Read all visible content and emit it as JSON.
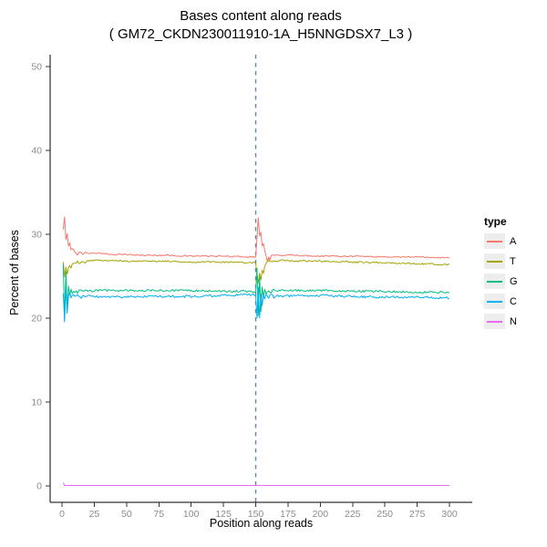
{
  "legend": {
    "title": "type",
    "entries": [
      {
        "label": "A",
        "color": "#F8766D"
      },
      {
        "label": "T",
        "color": "#A3A500"
      },
      {
        "label": "G",
        "color": "#00BF7D"
      },
      {
        "label": "C",
        "color": "#00B0F6"
      },
      {
        "label": "N",
        "color": "#E76BF3"
      }
    ]
  },
  "chart_data": {
    "type": "line",
    "title": "Bases content along reads",
    "subtitle": "( GM72_CKDN230011910-1A_H5NNGDSX7_L3 )",
    "xlabel": "Position along reads",
    "ylabel": "Percent of bases",
    "x_range": [
      1,
      300
    ],
    "xlim": [
      0,
      300
    ],
    "ylim": [
      0,
      52
    ],
    "x_ticks": [
      0,
      25,
      50,
      75,
      100,
      125,
      150,
      175,
      200,
      225,
      250,
      275,
      300
    ],
    "y_ticks": [
      0,
      10,
      20,
      30,
      40,
      50
    ],
    "grid": "off",
    "legend_position": "right",
    "vline": {
      "x": 150,
      "style": "dashed",
      "color": "#5588BB"
    },
    "styles": {
      "axis_line_color": "#000000",
      "tick_label_color": "#8C8C8C",
      "legend_key_bg": "#EDEDED"
    },
    "series": [
      {
        "name": "A",
        "color": "#F8766D",
        "noise": 0.08,
        "points": [
          [
            1,
            30.5
          ],
          [
            2,
            32.0
          ],
          [
            3,
            29.3
          ],
          [
            4,
            30.0
          ],
          [
            5,
            28.7
          ],
          [
            6,
            29.0
          ],
          [
            7,
            28.2
          ],
          [
            8,
            28.4
          ],
          [
            10,
            27.8
          ],
          [
            12,
            27.6
          ],
          [
            14,
            27.9
          ],
          [
            16,
            27.7
          ],
          [
            18,
            27.9
          ],
          [
            20,
            27.7
          ],
          [
            25,
            27.8
          ],
          [
            30,
            27.7
          ],
          [
            40,
            27.6
          ],
          [
            50,
            27.6
          ],
          [
            60,
            27.5
          ],
          [
            80,
            27.5
          ],
          [
            100,
            27.4
          ],
          [
            120,
            27.4
          ],
          [
            149,
            27.3
          ],
          [
            150,
            27.3
          ],
          [
            151,
            29.5
          ],
          [
            152,
            32.0
          ],
          [
            153,
            29.8
          ],
          [
            154,
            30.3
          ],
          [
            155,
            28.6
          ],
          [
            156,
            28.9
          ],
          [
            157,
            28.0
          ],
          [
            158,
            27.4
          ],
          [
            159,
            26.8
          ],
          [
            160,
            27.3
          ],
          [
            161,
            26.9
          ],
          [
            162,
            27.4
          ],
          [
            164,
            27.5
          ],
          [
            166,
            27.6
          ],
          [
            170,
            27.5
          ],
          [
            180,
            27.5
          ],
          [
            200,
            27.4
          ],
          [
            225,
            27.4
          ],
          [
            250,
            27.3
          ],
          [
            275,
            27.3
          ],
          [
            300,
            27.2
          ]
        ]
      },
      {
        "name": "T",
        "color": "#A3A500",
        "noise": 0.09,
        "points": [
          [
            1,
            26.6
          ],
          [
            2,
            24.9
          ],
          [
            3,
            26.2
          ],
          [
            4,
            25.3
          ],
          [
            5,
            25.9
          ],
          [
            6,
            26.3
          ],
          [
            7,
            26.0
          ],
          [
            8,
            26.4
          ],
          [
            10,
            26.5
          ],
          [
            12,
            26.7
          ],
          [
            14,
            26.5
          ],
          [
            16,
            26.8
          ],
          [
            18,
            26.7
          ],
          [
            20,
            26.8
          ],
          [
            25,
            26.9
          ],
          [
            30,
            26.9
          ],
          [
            40,
            26.9
          ],
          [
            50,
            26.8
          ],
          [
            60,
            26.8
          ],
          [
            80,
            26.8
          ],
          [
            100,
            26.7
          ],
          [
            120,
            26.7
          ],
          [
            149,
            26.6
          ],
          [
            150,
            26.6
          ],
          [
            151,
            25.4
          ],
          [
            152,
            24.2
          ],
          [
            153,
            25.3
          ],
          [
            154,
            24.6
          ],
          [
            155,
            25.8
          ],
          [
            156,
            25.3
          ],
          [
            157,
            26.2
          ],
          [
            158,
            26.6
          ],
          [
            160,
            26.9
          ],
          [
            162,
            26.7
          ],
          [
            164,
            26.9
          ],
          [
            166,
            26.8
          ],
          [
            170,
            26.9
          ],
          [
            180,
            26.8
          ],
          [
            200,
            26.8
          ],
          [
            225,
            26.7
          ],
          [
            250,
            26.6
          ],
          [
            275,
            26.5
          ],
          [
            300,
            26.4
          ]
        ]
      },
      {
        "name": "G",
        "color": "#00BF7D",
        "noise": 0.12,
        "points": [
          [
            1,
            26.4
          ],
          [
            2,
            19.8
          ],
          [
            3,
            25.6
          ],
          [
            4,
            20.9
          ],
          [
            5,
            23.9
          ],
          [
            6,
            22.7
          ],
          [
            7,
            23.4
          ],
          [
            8,
            22.9
          ],
          [
            10,
            23.2
          ],
          [
            12,
            23.0
          ],
          [
            14,
            23.3
          ],
          [
            16,
            23.1
          ],
          [
            18,
            23.3
          ],
          [
            20,
            23.2
          ],
          [
            25,
            23.3
          ],
          [
            30,
            23.3
          ],
          [
            40,
            23.3
          ],
          [
            50,
            23.3
          ],
          [
            60,
            23.3
          ],
          [
            80,
            23.3
          ],
          [
            100,
            23.3
          ],
          [
            120,
            23.2
          ],
          [
            149,
            23.2
          ],
          [
            150,
            23.2
          ],
          [
            151,
            26.0
          ],
          [
            152,
            20.2
          ],
          [
            153,
            24.8
          ],
          [
            154,
            20.8
          ],
          [
            155,
            23.6
          ],
          [
            156,
            22.4
          ],
          [
            157,
            23.4
          ],
          [
            158,
            22.8
          ],
          [
            160,
            23.3
          ],
          [
            162,
            23.1
          ],
          [
            164,
            23.4
          ],
          [
            166,
            23.2
          ],
          [
            170,
            23.3
          ],
          [
            180,
            23.3
          ],
          [
            200,
            23.3
          ],
          [
            225,
            23.2
          ],
          [
            250,
            23.2
          ],
          [
            275,
            23.1
          ],
          [
            300,
            23.1
          ]
        ]
      },
      {
        "name": "C",
        "color": "#00B0F6",
        "noise": 0.14,
        "points": [
          [
            1,
            23.0
          ],
          [
            2,
            19.5
          ],
          [
            3,
            23.6
          ],
          [
            4,
            20.4
          ],
          [
            5,
            22.5
          ],
          [
            6,
            22.9
          ],
          [
            7,
            22.3
          ],
          [
            8,
            22.8
          ],
          [
            10,
            22.5
          ],
          [
            12,
            22.8
          ],
          [
            14,
            22.4
          ],
          [
            16,
            22.7
          ],
          [
            18,
            22.5
          ],
          [
            20,
            22.7
          ],
          [
            25,
            22.6
          ],
          [
            30,
            22.5
          ],
          [
            40,
            22.6
          ],
          [
            50,
            22.5
          ],
          [
            60,
            22.6
          ],
          [
            80,
            22.6
          ],
          [
            100,
            22.6
          ],
          [
            120,
            22.7
          ],
          [
            149,
            22.8
          ],
          [
            150,
            22.8
          ],
          [
            151,
            20.1
          ],
          [
            152,
            23.6
          ],
          [
            153,
            19.9
          ],
          [
            154,
            22.9
          ],
          [
            155,
            21.6
          ],
          [
            156,
            22.9
          ],
          [
            157,
            22.2
          ],
          [
            158,
            22.8
          ],
          [
            160,
            22.5
          ],
          [
            162,
            22.8
          ],
          [
            164,
            22.5
          ],
          [
            166,
            22.7
          ],
          [
            170,
            22.6
          ],
          [
            180,
            22.7
          ],
          [
            200,
            22.7
          ],
          [
            225,
            22.6
          ],
          [
            250,
            22.5
          ],
          [
            275,
            22.5
          ],
          [
            300,
            22.4
          ]
        ]
      },
      {
        "name": "N",
        "color": "#E76BF3",
        "noise": 0,
        "points": [
          [
            1,
            0.4
          ],
          [
            2,
            0.05
          ],
          [
            300,
            0.05
          ]
        ]
      }
    ]
  }
}
